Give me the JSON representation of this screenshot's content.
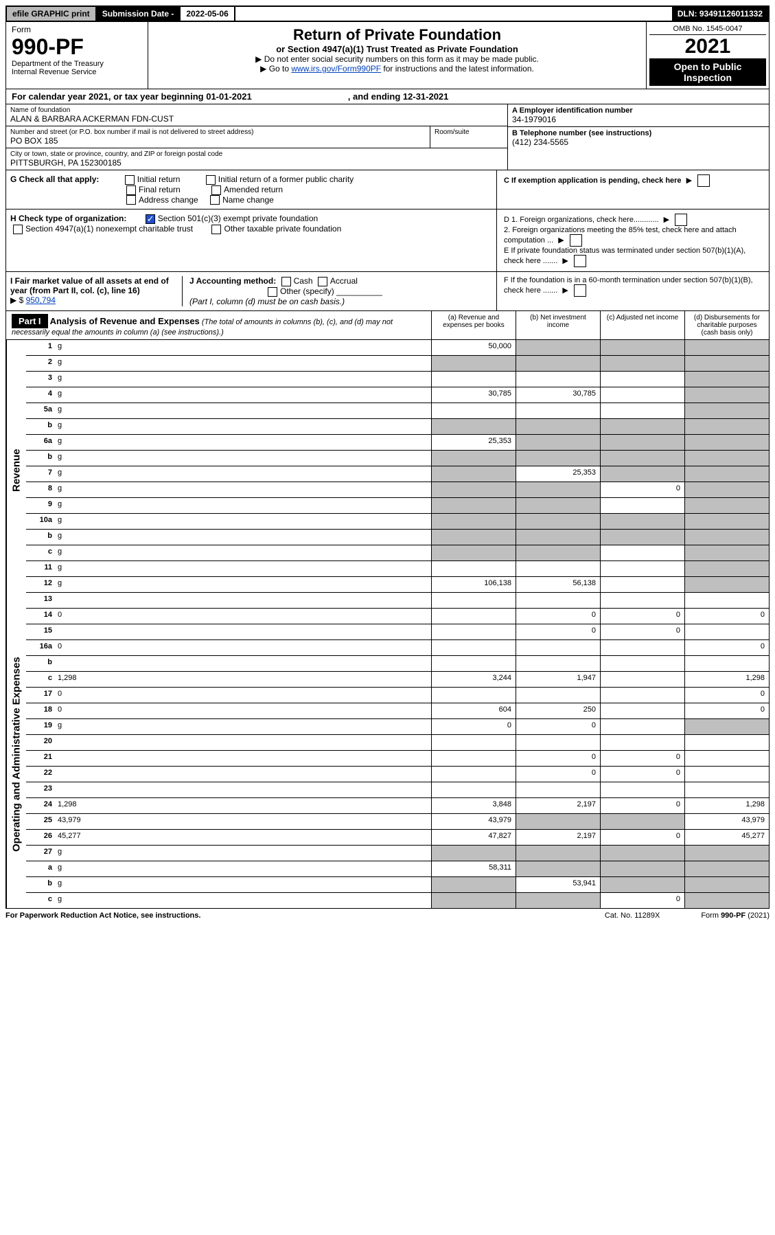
{
  "topbar": {
    "efile": "efile GRAPHIC print",
    "subdate_label": "Submission Date - ",
    "subdate_value": "2022-05-06",
    "dln": "DLN: 93491126011332"
  },
  "header": {
    "form_label": "Form",
    "form_number": "990-PF",
    "dept1": "Department of the Treasury",
    "dept2": "Internal Revenue Service",
    "title": "Return of Private Foundation",
    "subtitle": "or Section 4947(a)(1) Trust Treated as Private Foundation",
    "instr1": "▶ Do not enter social security numbers on this form as it may be made public.",
    "instr2a": "▶ Go to ",
    "instr2_link": "www.irs.gov/Form990PF",
    "instr2b": " for instructions and the latest information.",
    "omb": "OMB No. 1545-0047",
    "year": "2021",
    "open_pub": "Open to Public Inspection"
  },
  "calendar": {
    "text1": "For calendar year 2021, or tax year beginning 01-01-2021",
    "text2": ", and ending 12-31-2021"
  },
  "info_left": {
    "name_label": "Name of foundation",
    "name_value": "ALAN & BARBARA ACKERMAN FDN-CUST",
    "street_label": "Number and street (or P.O. box number if mail is not delivered to street address)",
    "street_value": "PO BOX 185",
    "room_label": "Room/suite",
    "city_label": "City or town, state or province, country, and ZIP or foreign postal code",
    "city_value": "PITTSBURGH, PA  152300185"
  },
  "info_right": {
    "a_label": "A Employer identification number",
    "a_value": "34-1979016",
    "b_label": "B Telephone number (see instructions)",
    "b_value": "(412) 234-5565",
    "c_label": "C If exemption application is pending, check here",
    "d1": "D 1. Foreign organizations, check here............",
    "d2": "2. Foreign organizations meeting the 85% test, check here and attach computation ...",
    "e": "E  If private foundation status was terminated under section 507(b)(1)(A), check here .......",
    "f": "F  If the foundation is in a 60-month termination under section 507(b)(1)(B), check here ......."
  },
  "checks": {
    "g_label": "G Check all that apply:",
    "g_initial": "Initial return",
    "g_final": "Final return",
    "g_addr": "Address change",
    "g_initial_pub": "Initial return of a former public charity",
    "g_amend": "Amended return",
    "g_name": "Name change",
    "h_label": "H Check type of organization:",
    "h_501c3": "Section 501(c)(3) exempt private foundation",
    "h_4947": "Section 4947(a)(1) nonexempt charitable trust",
    "h_other_tax": "Other taxable private foundation",
    "i_label": "I Fair market value of all assets at end of year (from Part II, col. (c), line 16)",
    "i_value": "950,794",
    "j_label": "J Accounting method:",
    "j_cash": "Cash",
    "j_accrual": "Accrual",
    "j_other": "Other (specify)",
    "j_note": "(Part I, column (d) must be on cash basis.)"
  },
  "part1": {
    "label": "Part I",
    "title": "Analysis of Revenue and Expenses",
    "note": "(The total of amounts in columns (b), (c), and (d) may not necessarily equal the amounts in column (a) (see instructions).)",
    "col_a": "(a)  Revenue and expenses per books",
    "col_b": "(b)  Net investment income",
    "col_c": "(c)  Adjusted net income",
    "col_d": "(d)  Disbursements for charitable purposes (cash basis only)"
  },
  "side_labels": {
    "revenue": "Revenue",
    "opex": "Operating and Administrative Expenses"
  },
  "rows": [
    {
      "n": "1",
      "d": "g",
      "a": "50,000",
      "b": "g",
      "c": "g"
    },
    {
      "n": "2",
      "d": "g",
      "a": "g",
      "b": "g",
      "c": "g"
    },
    {
      "n": "3",
      "d": "g",
      "a": "",
      "b": "",
      "c": ""
    },
    {
      "n": "4",
      "d": "g",
      "a": "30,785",
      "b": "30,785",
      "c": ""
    },
    {
      "n": "5a",
      "d": "g",
      "a": "",
      "b": "",
      "c": ""
    },
    {
      "n": "b",
      "d": "g",
      "a": "g",
      "b": "g",
      "c": "g"
    },
    {
      "n": "6a",
      "d": "g",
      "a": "25,353",
      "b": "g",
      "c": "g"
    },
    {
      "n": "b",
      "d": "g",
      "a": "g",
      "b": "g",
      "c": "g"
    },
    {
      "n": "7",
      "d": "g",
      "a": "g",
      "b": "25,353",
      "c": "g"
    },
    {
      "n": "8",
      "d": "g",
      "a": "g",
      "b": "g",
      "c": "0"
    },
    {
      "n": "9",
      "d": "g",
      "a": "g",
      "b": "g",
      "c": ""
    },
    {
      "n": "10a",
      "d": "g",
      "a": "g",
      "b": "g",
      "c": "g"
    },
    {
      "n": "b",
      "d": "g",
      "a": "g",
      "b": "g",
      "c": "g"
    },
    {
      "n": "c",
      "d": "g",
      "a": "g",
      "b": "g",
      "c": ""
    },
    {
      "n": "11",
      "d": "g",
      "a": "",
      "b": "",
      "c": ""
    },
    {
      "n": "12",
      "d": "g",
      "a": "106,138",
      "b": "56,138",
      "c": ""
    },
    {
      "n": "13",
      "d": "",
      "a": "",
      "b": "",
      "c": ""
    },
    {
      "n": "14",
      "d": "0",
      "a": "",
      "b": "0",
      "c": "0"
    },
    {
      "n": "15",
      "d": "",
      "a": "",
      "b": "0",
      "c": "0"
    },
    {
      "n": "16a",
      "d": "0",
      "a": "",
      "b": "",
      "c": ""
    },
    {
      "n": "b",
      "d": "",
      "a": "",
      "b": "",
      "c": ""
    },
    {
      "n": "c",
      "d": "1,298",
      "a": "3,244",
      "b": "1,947",
      "c": ""
    },
    {
      "n": "17",
      "d": "0",
      "a": "",
      "b": "",
      "c": ""
    },
    {
      "n": "18",
      "d": "0",
      "a": "604",
      "b": "250",
      "c": ""
    },
    {
      "n": "19",
      "d": "g",
      "a": "0",
      "b": "0",
      "c": ""
    },
    {
      "n": "20",
      "d": "",
      "a": "",
      "b": "",
      "c": ""
    },
    {
      "n": "21",
      "d": "",
      "a": "",
      "b": "0",
      "c": "0"
    },
    {
      "n": "22",
      "d": "",
      "a": "",
      "b": "0",
      "c": "0"
    },
    {
      "n": "23",
      "d": "",
      "a": "",
      "b": "",
      "c": ""
    },
    {
      "n": "24",
      "d": "1,298",
      "a": "3,848",
      "b": "2,197",
      "c": "0"
    },
    {
      "n": "25",
      "d": "43,979",
      "a": "43,979",
      "b": "g",
      "c": "g"
    },
    {
      "n": "26",
      "d": "45,277",
      "a": "47,827",
      "b": "2,197",
      "c": "0"
    },
    {
      "n": "27",
      "d": "g",
      "a": "g",
      "b": "g",
      "c": "g"
    },
    {
      "n": "a",
      "d": "g",
      "a": "58,311",
      "b": "g",
      "c": "g"
    },
    {
      "n": "b",
      "d": "g",
      "a": "g",
      "b": "53,941",
      "c": "g"
    },
    {
      "n": "c",
      "d": "g",
      "a": "g",
      "b": "g",
      "c": "0"
    }
  ],
  "footer": {
    "left": "For Paperwork Reduction Act Notice, see instructions.",
    "mid": "Cat. No. 11289X",
    "right": "Form 990-PF (2021)"
  }
}
